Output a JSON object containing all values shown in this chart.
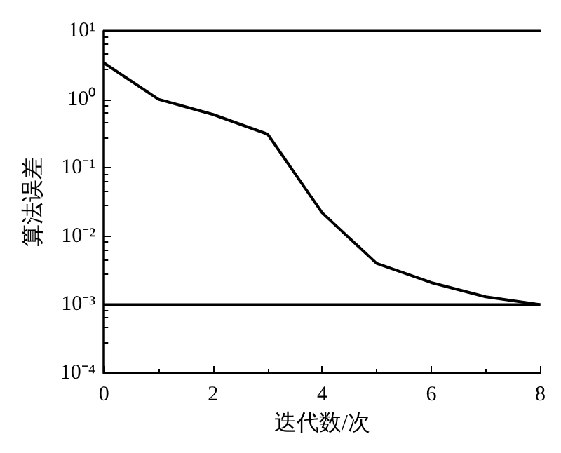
{
  "chart_data": {
    "type": "line",
    "xlabel": "迭代数/次",
    "ylabel": "算法误差",
    "x": [
      0,
      1,
      2,
      3,
      4,
      5,
      6,
      7,
      8
    ],
    "series": [
      {
        "color": "#000000",
        "values": [
          3.4,
          1.0,
          0.6,
          0.31,
          0.022,
          0.004,
          0.0021,
          0.0013,
          0.001
        ]
      }
    ],
    "xlim": [
      0,
      8
    ],
    "xticks": [
      0,
      2,
      4,
      6,
      8
    ],
    "ylim": [
      0.0001,
      10
    ],
    "yticks": [
      {
        "value": 0.0001,
        "label": "10⁻⁴"
      },
      {
        "value": 0.001,
        "label": "10⁻³"
      },
      {
        "value": 0.01,
        "label": "10⁻²"
      },
      {
        "value": 0.1,
        "label": "10⁻¹"
      },
      {
        "value": 1,
        "label": "10⁰"
      },
      {
        "value": 10,
        "label": "10¹"
      }
    ],
    "log": true,
    "grid": false,
    "marker": "none",
    "line_style": "solid",
    "ref_lines": [
      {
        "axis": "y",
        "value": 0.001,
        "color": "#000000"
      }
    ]
  }
}
